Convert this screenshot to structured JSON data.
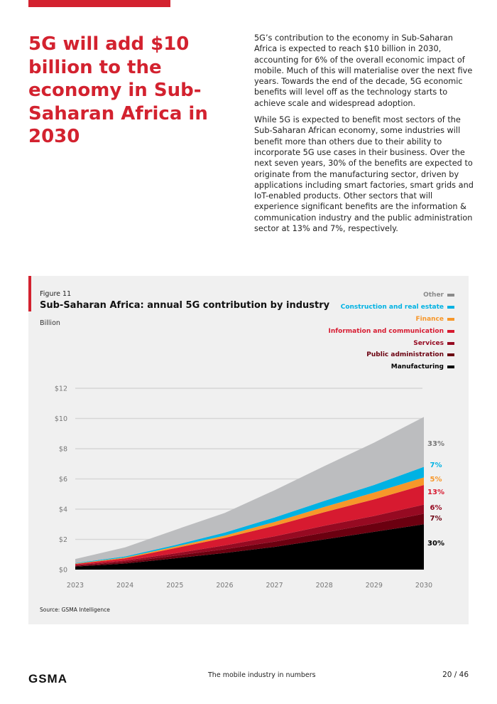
{
  "headline": "5G will add $10 billion to the economy in Sub-Saharan Africa in 2030",
  "body": [
    "5G’s contribution to the economy in Sub-Saharan Africa is expected to reach $10 billion in 2030, accounting for 6% of the overall economic impact of mobile. Much of this will materialise over the next five years. Towards the end of the decade, 5G economic benefits will level off as the technology starts to achieve scale and widespread adoption.",
    "While 5G is expected to benefit most sectors of the Sub-Saharan African economy, some industries will benefit more than others due to their ability to incorporate 5G use cases in their business. Over the next seven years, 30% of the benefits are expected to originate from the manufacturing sector, driven by applications including smart factories, smart grids and IoT-enabled products. Other sectors that will experience significant benefits are the information & communication industry and the public administration sector at 13% and 7%, respectively."
  ],
  "figure": {
    "label": "Figure 11",
    "source": "Source: GSMA Intelligence"
  },
  "chart_data": {
    "type": "area",
    "title": "Sub-Saharan Africa: annual 5G contribution by industry",
    "ylabel": "Billion",
    "x": [
      "2023",
      "2024",
      "2025",
      "2026",
      "2027",
      "2028",
      "2029",
      "2030"
    ],
    "yticks": [
      "$0",
      "$2",
      "$4",
      "$6",
      "$8",
      "$10",
      "$12"
    ],
    "ylim": [
      0,
      12
    ],
    "grid": true,
    "legend_placement": "top-right",
    "series": [
      {
        "name": "Manufacturing",
        "color": "#000000",
        "share": "30%",
        "values": [
          0.2,
          0.4,
          0.75,
          1.1,
          1.5,
          2.0,
          2.5,
          3.0
        ]
      },
      {
        "name": "Public administration",
        "color": "#6b0010",
        "share": "7%",
        "values": [
          0.05,
          0.1,
          0.17,
          0.25,
          0.35,
          0.45,
          0.55,
          0.7
        ]
      },
      {
        "name": "Services",
        "color": "#960a22",
        "share": "6%",
        "values": [
          0.05,
          0.1,
          0.15,
          0.25,
          0.35,
          0.45,
          0.5,
          0.6
        ]
      },
      {
        "name": "Information and communication",
        "color": "#d71a30",
        "share": "13%",
        "values": [
          0.07,
          0.15,
          0.35,
          0.5,
          0.7,
          0.9,
          1.1,
          1.3
        ]
      },
      {
        "name": "Finance",
        "color": "#f7972a",
        "share": "5%",
        "values": [
          0.03,
          0.05,
          0.1,
          0.15,
          0.25,
          0.35,
          0.45,
          0.5
        ]
      },
      {
        "name": "Construction and real estate",
        "color": "#00b2e3",
        "share": "7%",
        "values": [
          0.03,
          0.07,
          0.1,
          0.2,
          0.3,
          0.4,
          0.5,
          0.7
        ]
      },
      {
        "name": "Other",
        "color": "#bcbdbf",
        "share": "33%",
        "values": [
          0.27,
          0.6,
          1.0,
          1.3,
          1.8,
          2.3,
          2.8,
          3.3
        ]
      }
    ]
  },
  "legend_text_colors": {
    "Other": "#8a8a8a",
    "Construction and real estate": "#00b2e3",
    "Finance": "#f7972a",
    "Information and communication": "#d71a30",
    "Services": "#960a22",
    "Public administration": "#6b0010",
    "Manufacturing": "#000000"
  },
  "footer": {
    "logo": "GSMA",
    "title": "The mobile industry in numbers",
    "page": "20 / 46"
  }
}
